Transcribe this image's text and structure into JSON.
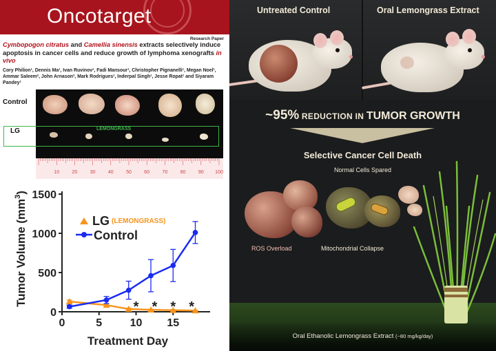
{
  "paper": {
    "journal": "Oncotarget",
    "paper_type": "Research Paper",
    "title_it1": "Cymbopogon citratus",
    "title_and": " and ",
    "title_it2": "Camellia sinensis",
    "title_rest": " extracts selectively induce apoptosis in cancer cells and reduce growth of lymphoma xenografts ",
    "title_it3": "in vivo",
    "authors": "Cory Philion¹, Dennis Ma¹, Ivan Ruvinov¹, Fadi Mansour¹, Christopher Pignanelli¹, Megan Noel¹, Ammar Saleem², John Arnason², Mark Rodrigues¹, Inderpal Singh¹, Jesse Ropat¹ and Siyaram Pandey¹"
  },
  "photo": {
    "control_label": "Control",
    "lg_label": "LG",
    "lg_box_label": "LEMONGRASS",
    "ruler_ticks": [
      "10",
      "20",
      "30",
      "40",
      "50",
      "60",
      "70",
      "80",
      "90",
      "100"
    ]
  },
  "colors": {
    "journal_red": "#a8141d",
    "control_series": "#1a2bf0",
    "lg_series": "#f7941d",
    "lg_box": "#3cb44b",
    "panel_text": "#f2ead8"
  },
  "chart_data": {
    "type": "line",
    "xlabel": "Treatment Day",
    "ylabel": "Tumor Volume (mm",
    "ylabel_sup": "3",
    "ylabel_end": ")",
    "xlim": [
      0,
      20
    ],
    "ylim": [
      0,
      1500
    ],
    "x_ticks": [
      0,
      5,
      10,
      15
    ],
    "y_ticks": [
      0,
      500,
      1000,
      1500
    ],
    "legend_placement": "center-left",
    "significance_marker": "*",
    "significance_x": [
      10,
      12.5,
      15,
      17.5
    ],
    "series": [
      {
        "name": "LG",
        "name_note": "(LEMONGRASS)",
        "marker": "triangle",
        "x": [
          1,
          6,
          9,
          12,
          15,
          18
        ],
        "y": [
          130,
          85,
          35,
          25,
          20,
          15
        ],
        "err": [
          20,
          15,
          10,
          8,
          8,
          5
        ]
      },
      {
        "name": "Control",
        "marker": "circle",
        "x": [
          1,
          6,
          9,
          12,
          15,
          18
        ],
        "y": [
          65,
          150,
          275,
          460,
          590,
          1010
        ],
        "err": [
          20,
          45,
          115,
          205,
          205,
          140
        ]
      }
    ]
  },
  "infographic": {
    "head_untreated": "Untreated Control",
    "head_oral": "Oral Lemongrass Extract",
    "reduction_pct": "~95%",
    "reduction_mid": " REDUCTION IN ",
    "reduction_end": "TUMOR GROWTH",
    "selective": "Selective Cancer Cell Death",
    "normal_cells": "Normal Cells Spared",
    "ros": "ROS Overload",
    "mito": "Mitochondrial Collapse",
    "footer_main": "Oral Ethanolic Lemongrass Extract ",
    "footer_dose": "(~80 mg/kg/day)"
  }
}
